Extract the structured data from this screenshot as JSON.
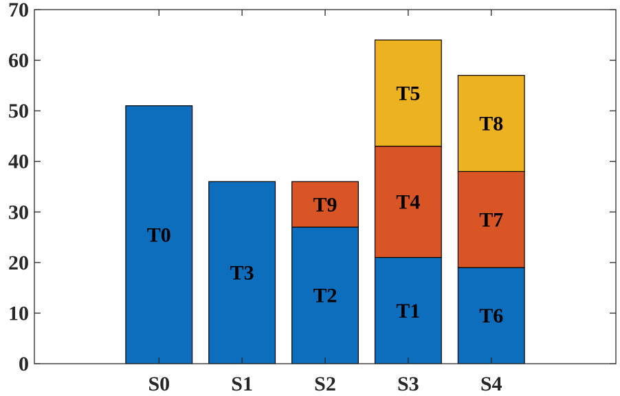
{
  "chart_data": {
    "type": "bar",
    "stacked": true,
    "title": "",
    "xlabel": "",
    "ylabel": "",
    "categories": [
      "S0",
      "S1",
      "S2",
      "S3",
      "S4"
    ],
    "ylim": [
      0,
      70
    ],
    "yticks": [
      "0",
      "10",
      "20",
      "30",
      "40",
      "50",
      "60",
      "70"
    ],
    "grid": false,
    "colors": [
      "#0C6EBD",
      "#D95525",
      "#EDB220"
    ],
    "stacks": [
      [
        {
          "label": "T0",
          "value": 51
        }
      ],
      [
        {
          "label": "T3",
          "value": 36
        }
      ],
      [
        {
          "label": "T2",
          "value": 27
        },
        {
          "label": "T9",
          "value": 9
        }
      ],
      [
        {
          "label": "T1",
          "value": 21
        },
        {
          "label": "T4",
          "value": 22
        },
        {
          "label": "T5",
          "value": 21
        }
      ],
      [
        {
          "label": "T6",
          "value": 19
        },
        {
          "label": "T7",
          "value": 19
        },
        {
          "label": "T8",
          "value": 19
        }
      ]
    ]
  }
}
